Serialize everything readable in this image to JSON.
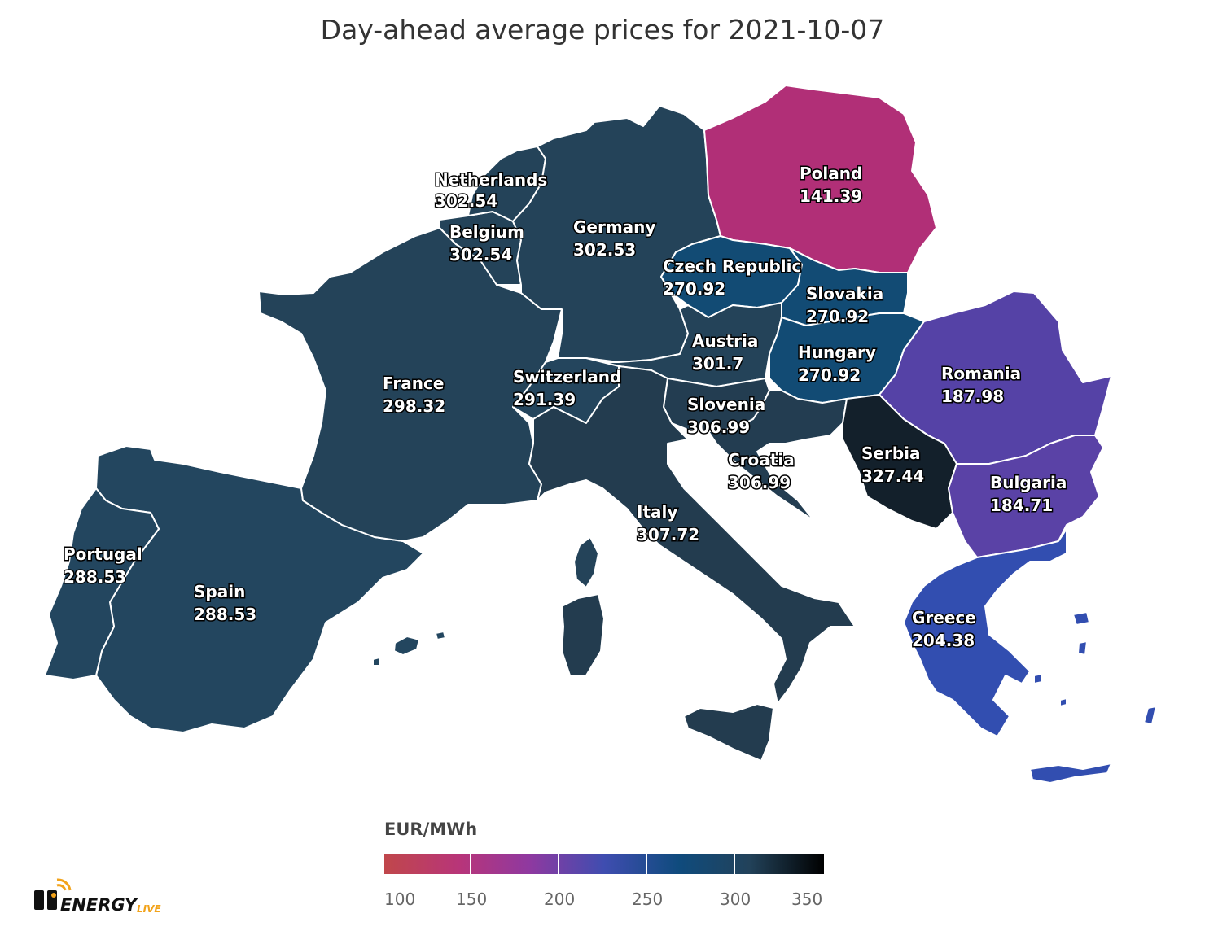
{
  "title": "Day-ahead average prices for 2021-10-07",
  "legend": {
    "title": "EUR/MWh",
    "ticks": [
      "100",
      "150",
      "200",
      "250",
      "300",
      "350"
    ],
    "min": 100,
    "max": 350,
    "colors": [
      "#c0474b",
      "#b83579",
      "#8f39a0",
      "#3f4db0",
      "#0f4b7d",
      "#22425a",
      "#000000"
    ]
  },
  "countries": [
    {
      "name": "Poland",
      "value": "141.39",
      "color": "#b12f77"
    },
    {
      "name": "Netherlands",
      "value": "302.54",
      "color": "#244359"
    },
    {
      "name": "Belgium",
      "value": "302.54",
      "color": "#244359"
    },
    {
      "name": "Germany",
      "value": "302.53",
      "color": "#244359"
    },
    {
      "name": "Czech Republic",
      "value": "270.92",
      "color": "#124b74"
    },
    {
      "name": "Slovakia",
      "value": "270.92",
      "color": "#124b74"
    },
    {
      "name": "Austria",
      "value": "301.7",
      "color": "#244359"
    },
    {
      "name": "Hungary",
      "value": "270.92",
      "color": "#124b74"
    },
    {
      "name": "Romania",
      "value": "187.98",
      "color": "#5542a6"
    },
    {
      "name": "France",
      "value": "298.32",
      "color": "#244359"
    },
    {
      "name": "Switzerland",
      "value": "291.39",
      "color": "#24455d"
    },
    {
      "name": "Slovenia",
      "value": "306.99",
      "color": "#233d51"
    },
    {
      "name": "Croatia",
      "value": "306.99",
      "color": "#233d51"
    },
    {
      "name": "Serbia",
      "value": "327.44",
      "color": "#13202b"
    },
    {
      "name": "Bulgaria",
      "value": "184.71",
      "color": "#5a42a6"
    },
    {
      "name": "Italy",
      "value": "307.72",
      "color": "#233c4f"
    },
    {
      "name": "Portugal",
      "value": "288.53",
      "color": "#23465f"
    },
    {
      "name": "Spain",
      "value": "288.53",
      "color": "#23465f"
    },
    {
      "name": "Greece",
      "value": "204.38",
      "color": "#324eb0"
    }
  ],
  "logo": {
    "main": "ENERGY",
    "sub": "LIVE",
    "icon": "energy-live-logo-icon"
  }
}
